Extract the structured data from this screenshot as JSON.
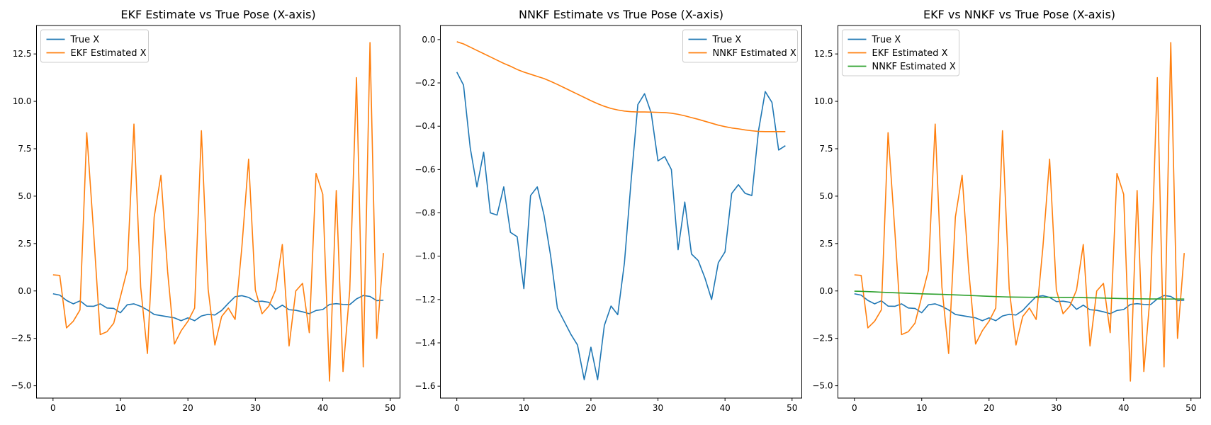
{
  "colors": {
    "true_x": "#1f77b4",
    "ekf": "#ff7f0e",
    "nnkf": "#2ca02c",
    "axes": "#000000"
  },
  "chart_data": [
    {
      "type": "line",
      "title": "EKF Estimate vs True Pose (X-axis)",
      "xlabel": "",
      "ylabel": "",
      "xlim": [
        -2.45,
        51.45
      ],
      "ylim": [
        -5.65,
        14.0
      ],
      "xticks": [
        0,
        10,
        20,
        30,
        40,
        50
      ],
      "yticks": [
        -5.0,
        -2.5,
        0.0,
        2.5,
        5.0,
        7.5,
        10.0,
        12.5
      ],
      "ytick_labels": [
        "−5.0",
        "−2.5",
        "0.0",
        "2.5",
        "5.0",
        "7.5",
        "10.0",
        "12.5"
      ],
      "legend_position": "upper-left",
      "grid": false,
      "series": [
        {
          "name": "True X",
          "color_key": "true_x",
          "x": [
            0,
            1,
            2,
            3,
            4,
            5,
            6,
            7,
            8,
            9,
            10,
            11,
            12,
            13,
            14,
            15,
            16,
            17,
            18,
            19,
            20,
            21,
            22,
            23,
            24,
            25,
            26,
            27,
            28,
            29,
            30,
            31,
            32,
            33,
            34,
            35,
            36,
            37,
            38,
            39,
            40,
            41,
            42,
            43,
            44,
            45,
            46,
            47,
            48,
            49
          ],
          "y": [
            -0.15,
            -0.22,
            -0.5,
            -0.68,
            -0.52,
            -0.8,
            -0.81,
            -0.68,
            -0.9,
            -0.92,
            -1.15,
            -0.73,
            -0.68,
            -0.81,
            -1.0,
            -1.24,
            -1.3,
            -1.36,
            -1.42,
            -1.57,
            -1.42,
            -1.57,
            -1.32,
            -1.23,
            -1.27,
            -1.03,
            -0.65,
            -0.3,
            -0.25,
            -0.34,
            -0.56,
            -0.54,
            -0.6,
            -0.97,
            -0.75,
            -0.99,
            -1.02,
            -1.1,
            -1.2,
            -1.03,
            -0.98,
            -0.71,
            -0.67,
            -0.71,
            -0.72,
            -0.42,
            -0.24,
            -0.29,
            -0.51,
            -0.49
          ]
        },
        {
          "name": "EKF Estimated X",
          "color_key": "ekf",
          "x": [
            0,
            1,
            2,
            3,
            4,
            5,
            6,
            7,
            8,
            9,
            10,
            11,
            12,
            13,
            14,
            15,
            16,
            17,
            18,
            19,
            20,
            21,
            22,
            23,
            24,
            25,
            26,
            27,
            28,
            29,
            30,
            31,
            32,
            33,
            34,
            35,
            36,
            37,
            38,
            39,
            40,
            41,
            42,
            43,
            44,
            45,
            46,
            47,
            48,
            49
          ],
          "y": [
            0.85,
            0.82,
            -1.95,
            -1.6,
            -1.0,
            8.35,
            3.2,
            -2.3,
            -2.15,
            -1.7,
            -0.3,
            1.1,
            8.8,
            0.2,
            -3.3,
            3.9,
            6.1,
            1.0,
            -2.8,
            -2.1,
            -1.6,
            -0.9,
            8.45,
            0.1,
            -2.85,
            -1.35,
            -0.9,
            -1.5,
            2.3,
            6.95,
            0.05,
            -1.2,
            -0.8,
            0.05,
            2.45,
            -2.9,
            0.0,
            0.4,
            -2.2,
            6.2,
            5.1,
            -4.75,
            5.3,
            -4.25,
            0.05,
            11.25,
            -4.0,
            13.1,
            -2.5,
            2.0
          ]
        }
      ]
    },
    {
      "type": "line",
      "title": "NNKF Estimate vs True Pose (X-axis)",
      "xlabel": "",
      "ylabel": "",
      "xlim": [
        -2.45,
        51.45
      ],
      "ylim": [
        -1.655,
        0.065
      ],
      "xticks": [
        0,
        10,
        20,
        30,
        40,
        50
      ],
      "yticks": [
        -1.6,
        -1.4,
        -1.2,
        -1.0,
        -0.8,
        -0.6,
        -0.4,
        -0.2,
        0.0
      ],
      "ytick_labels": [
        "−1.6",
        "−1.4",
        "−1.2",
        "−1.0",
        "−0.8",
        "−0.6",
        "−0.4",
        "−0.2",
        "0.0"
      ],
      "legend_position": "upper-right",
      "grid": false,
      "series": [
        {
          "name": "True X",
          "color_key": "true_x",
          "x": [
            0,
            1,
            2,
            3,
            4,
            5,
            6,
            7,
            8,
            9,
            10,
            11,
            12,
            13,
            14,
            15,
            16,
            17,
            18,
            19,
            20,
            21,
            22,
            23,
            24,
            25,
            26,
            27,
            28,
            29,
            30,
            31,
            32,
            33,
            34,
            35,
            36,
            37,
            38,
            39,
            40,
            41,
            42,
            43,
            44,
            45,
            46,
            47,
            48,
            49
          ],
          "y": [
            -0.15,
            -0.21,
            -0.5,
            -0.68,
            -0.52,
            -0.8,
            -0.81,
            -0.68,
            -0.89,
            -0.91,
            -1.15,
            -0.72,
            -0.68,
            -0.81,
            -1.0,
            -1.24,
            -1.3,
            -1.36,
            -1.41,
            -1.57,
            -1.42,
            -1.57,
            -1.32,
            -1.23,
            -1.27,
            -1.03,
            -0.65,
            -0.3,
            -0.25,
            -0.34,
            -0.56,
            -0.54,
            -0.6,
            -0.97,
            -0.75,
            -0.99,
            -1.02,
            -1.1,
            -1.2,
            -1.03,
            -0.98,
            -0.71,
            -0.67,
            -0.71,
            -0.72,
            -0.42,
            -0.24,
            -0.29,
            -0.51,
            -0.49
          ]
        },
        {
          "name": "NNKF Estimated X",
          "color_key": "ekf",
          "x": [
            0,
            1,
            2,
            3,
            4,
            5,
            6,
            7,
            8,
            9,
            10,
            11,
            12,
            13,
            14,
            15,
            16,
            17,
            18,
            19,
            20,
            21,
            22,
            23,
            24,
            25,
            26,
            27,
            28,
            29,
            30,
            31,
            32,
            33,
            34,
            35,
            36,
            37,
            38,
            39,
            40,
            41,
            42,
            43,
            44,
            45,
            46,
            47,
            48,
            49
          ],
          "y": [
            -0.01,
            -0.02,
            -0.035,
            -0.05,
            -0.065,
            -0.08,
            -0.095,
            -0.11,
            -0.123,
            -0.138,
            -0.15,
            -0.16,
            -0.17,
            -0.18,
            -0.193,
            -0.207,
            -0.222,
            -0.237,
            -0.252,
            -0.267,
            -0.282,
            -0.296,
            -0.308,
            -0.318,
            -0.325,
            -0.33,
            -0.333,
            -0.334,
            -0.334,
            -0.335,
            -0.336,
            -0.337,
            -0.34,
            -0.345,
            -0.352,
            -0.36,
            -0.368,
            -0.377,
            -0.386,
            -0.395,
            -0.402,
            -0.408,
            -0.412,
            -0.417,
            -0.421,
            -0.424,
            -0.425,
            -0.425,
            -0.425,
            -0.425
          ]
        }
      ]
    },
    {
      "type": "line",
      "title": "EKF vs NNKF vs True Pose (X-axis)",
      "xlabel": "",
      "ylabel": "",
      "xlim": [
        -2.45,
        51.45
      ],
      "ylim": [
        -5.65,
        14.0
      ],
      "xticks": [
        0,
        10,
        20,
        30,
        40,
        50
      ],
      "yticks": [
        -5.0,
        -2.5,
        0.0,
        2.5,
        5.0,
        7.5,
        10.0,
        12.5
      ],
      "ytick_labels": [
        "−5.0",
        "−2.5",
        "0.0",
        "2.5",
        "5.0",
        "7.5",
        "10.0",
        "12.5"
      ],
      "legend_position": "upper-left",
      "grid": false,
      "series": [
        {
          "name": "True X",
          "color_key": "true_x",
          "x": [
            0,
            1,
            2,
            3,
            4,
            5,
            6,
            7,
            8,
            9,
            10,
            11,
            12,
            13,
            14,
            15,
            16,
            17,
            18,
            19,
            20,
            21,
            22,
            23,
            24,
            25,
            26,
            27,
            28,
            29,
            30,
            31,
            32,
            33,
            34,
            35,
            36,
            37,
            38,
            39,
            40,
            41,
            42,
            43,
            44,
            45,
            46,
            47,
            48,
            49
          ],
          "y": [
            -0.15,
            -0.22,
            -0.5,
            -0.68,
            -0.52,
            -0.8,
            -0.81,
            -0.68,
            -0.9,
            -0.92,
            -1.15,
            -0.73,
            -0.68,
            -0.81,
            -1.0,
            -1.24,
            -1.3,
            -1.36,
            -1.42,
            -1.57,
            -1.42,
            -1.57,
            -1.32,
            -1.23,
            -1.27,
            -1.03,
            -0.65,
            -0.3,
            -0.25,
            -0.34,
            -0.56,
            -0.54,
            -0.6,
            -0.97,
            -0.75,
            -0.99,
            -1.02,
            -1.1,
            -1.2,
            -1.03,
            -0.98,
            -0.71,
            -0.67,
            -0.71,
            -0.72,
            -0.42,
            -0.24,
            -0.29,
            -0.51,
            -0.49
          ]
        },
        {
          "name": "EKF Estimated X",
          "color_key": "ekf",
          "x": [
            0,
            1,
            2,
            3,
            4,
            5,
            6,
            7,
            8,
            9,
            10,
            11,
            12,
            13,
            14,
            15,
            16,
            17,
            18,
            19,
            20,
            21,
            22,
            23,
            24,
            25,
            26,
            27,
            28,
            29,
            30,
            31,
            32,
            33,
            34,
            35,
            36,
            37,
            38,
            39,
            40,
            41,
            42,
            43,
            44,
            45,
            46,
            47,
            48,
            49
          ],
          "y": [
            0.85,
            0.82,
            -1.95,
            -1.6,
            -1.0,
            8.35,
            3.2,
            -2.3,
            -2.15,
            -1.7,
            -0.3,
            1.1,
            8.8,
            0.2,
            -3.3,
            3.9,
            6.1,
            1.0,
            -2.8,
            -2.1,
            -1.6,
            -0.9,
            8.45,
            0.1,
            -2.85,
            -1.35,
            -0.9,
            -1.5,
            2.3,
            6.95,
            0.05,
            -1.2,
            -0.8,
            0.05,
            2.45,
            -2.9,
            0.0,
            0.4,
            -2.2,
            6.2,
            5.1,
            -4.75,
            5.3,
            -4.25,
            0.05,
            11.25,
            -4.0,
            13.1,
            -2.5,
            2.0
          ]
        },
        {
          "name": "NNKF Estimated X",
          "color_key": "nnkf",
          "x": [
            0,
            1,
            2,
            3,
            4,
            5,
            6,
            7,
            8,
            9,
            10,
            11,
            12,
            13,
            14,
            15,
            16,
            17,
            18,
            19,
            20,
            21,
            22,
            23,
            24,
            25,
            26,
            27,
            28,
            29,
            30,
            31,
            32,
            33,
            34,
            35,
            36,
            37,
            38,
            39,
            40,
            41,
            42,
            43,
            44,
            45,
            46,
            47,
            48,
            49
          ],
          "y": [
            -0.01,
            -0.02,
            -0.035,
            -0.05,
            -0.065,
            -0.08,
            -0.095,
            -0.11,
            -0.123,
            -0.138,
            -0.15,
            -0.16,
            -0.17,
            -0.18,
            -0.193,
            -0.207,
            -0.222,
            -0.237,
            -0.252,
            -0.267,
            -0.282,
            -0.296,
            -0.308,
            -0.318,
            -0.325,
            -0.33,
            -0.333,
            -0.334,
            -0.334,
            -0.335,
            -0.336,
            -0.337,
            -0.34,
            -0.345,
            -0.352,
            -0.36,
            -0.368,
            -0.377,
            -0.386,
            -0.395,
            -0.402,
            -0.408,
            -0.412,
            -0.417,
            -0.421,
            -0.424,
            -0.425,
            -0.425,
            -0.425,
            -0.425
          ]
        }
      ]
    }
  ]
}
